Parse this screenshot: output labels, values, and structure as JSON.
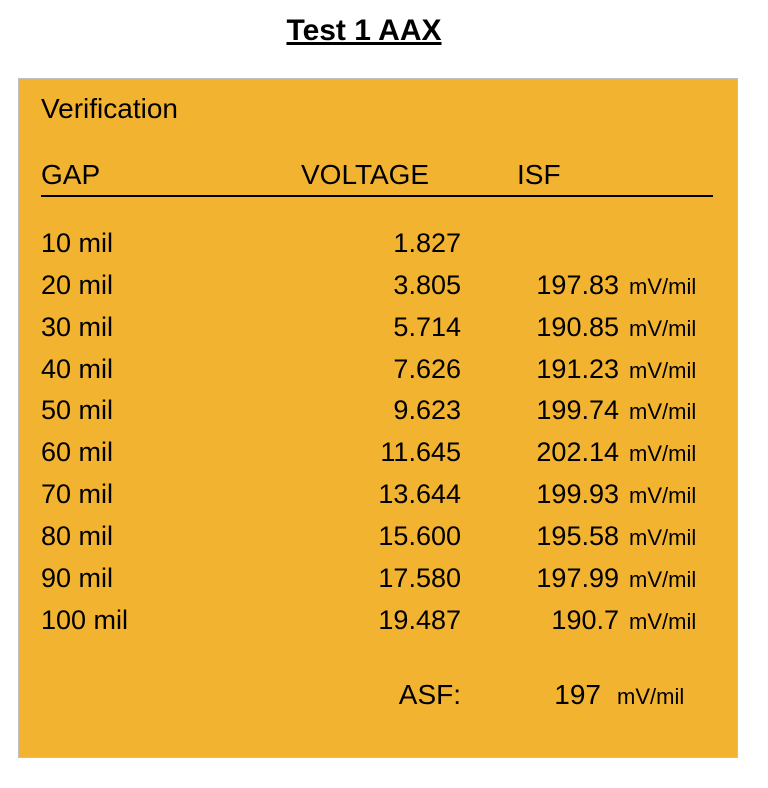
{
  "page": {
    "title": "Test 1 AAX",
    "title_fontsize": 30,
    "title_weight": "bold",
    "title_underline": true,
    "background_color": "#ffffff"
  },
  "panel": {
    "section_label": "Verification",
    "background_color": "#f2b331",
    "border_color": "#bfbfbf",
    "divider_color": "#000000",
    "text_color": "#000000",
    "body_fontsize": 27,
    "header_fontsize": 28,
    "unit_fontsize": 22,
    "columns": {
      "gap": "GAP",
      "voltage": "VOLTAGE",
      "isf": "ISF"
    },
    "rows": [
      {
        "gap": "10 mil",
        "voltage": "1.827",
        "isf": "",
        "unit": ""
      },
      {
        "gap": "20 mil",
        "voltage": "3.805",
        "isf": "197.83",
        "unit": "mV/mil"
      },
      {
        "gap": "30 mil",
        "voltage": "5.714",
        "isf": "190.85",
        "unit": "mV/mil"
      },
      {
        "gap": "40 mil",
        "voltage": "7.626",
        "isf": "191.23",
        "unit": "mV/mil"
      },
      {
        "gap": "50 mil",
        "voltage": "9.623",
        "isf": "199.74",
        "unit": "mV/mil"
      },
      {
        "gap": "60 mil",
        "voltage": "11.645",
        "isf": "202.14",
        "unit": "mV/mil"
      },
      {
        "gap": "70 mil",
        "voltage": "13.644",
        "isf": "199.93",
        "unit": "mV/mil"
      },
      {
        "gap": "80 mil",
        "voltage": "15.600",
        "isf": "195.58",
        "unit": "mV/mil"
      },
      {
        "gap": "90 mil",
        "voltage": "17.580",
        "isf": "197.99",
        "unit": "mV/mil"
      },
      {
        "gap": "100 mil",
        "voltage": "19.487",
        "isf": "190.7",
        "unit": "mV/mil"
      }
    ],
    "summary": {
      "label": "ASF:",
      "value": "197",
      "unit": "mV/mil"
    }
  }
}
